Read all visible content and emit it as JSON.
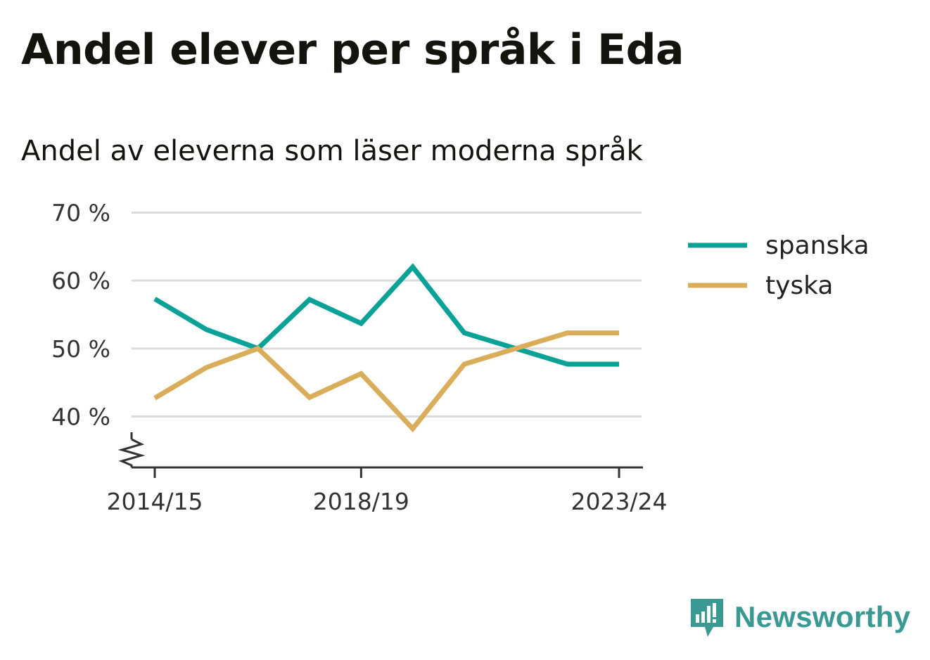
{
  "title": "Andel elever per språk i Eda",
  "subtitle": "Andel av eleverna som läser moderna språk",
  "brand": {
    "name": "Newsworthy",
    "color": "#3a9a93",
    "icon": "newsworthy-logo-icon"
  },
  "chart_data": {
    "type": "line",
    "x": [
      "2014/15",
      "2015/16",
      "2016/17",
      "2017/18",
      "2018/19",
      "2019/20",
      "2020/21",
      "2021/22",
      "2022/23",
      "2023/24"
    ],
    "xtick_labels": [
      "2014/15",
      "2018/19",
      "2023/24"
    ],
    "yticks": [
      40,
      50,
      60,
      70
    ],
    "ytick_labels": [
      "40 %",
      "50 %",
      "60 %",
      "70 %"
    ],
    "ylim": [
      32.5,
      70
    ],
    "y_axis_break": true,
    "grid": true,
    "legend_position": "right",
    "series": [
      {
        "name": "spanska",
        "color": "#0aa296",
        "values": [
          57.3,
          52.8,
          50.0,
          57.2,
          53.7,
          62.0,
          52.3,
          50.0,
          47.7,
          47.7
        ]
      },
      {
        "name": "tyska",
        "color": "#d9ad5a",
        "values": [
          42.7,
          47.2,
          50.0,
          42.8,
          46.3,
          38.2,
          47.7,
          50.0,
          52.3,
          52.3
        ]
      }
    ]
  }
}
